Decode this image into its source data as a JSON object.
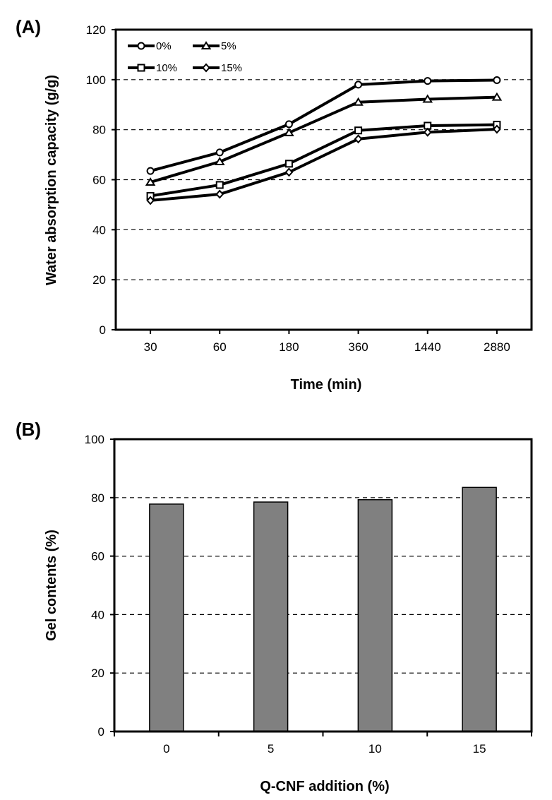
{
  "chart_data": [
    {
      "panel_label": "(A)",
      "type": "line",
      "title": "",
      "xlabel": "Time (min)",
      "ylabel": "Water absorption capacity (g/g)",
      "categories": [
        "30",
        "60",
        "180",
        "360",
        "1440",
        "2880"
      ],
      "ylim": [
        0,
        120
      ],
      "yticks": [
        0,
        20,
        40,
        60,
        80,
        100,
        120
      ],
      "grid": "horizontal-dashed",
      "legend": "top-left",
      "series": [
        {
          "name": "0%",
          "marker": "circle",
          "values": [
            63.5,
            70.9,
            82.2,
            98.0,
            99.5,
            99.8
          ]
        },
        {
          "name": "5%",
          "marker": "triangle",
          "values": [
            59.0,
            67.2,
            78.8,
            91.0,
            92.2,
            93.0
          ]
        },
        {
          "name": "10%",
          "marker": "square",
          "values": [
            53.5,
            57.9,
            66.4,
            79.7,
            81.6,
            82.0
          ]
        },
        {
          "name": "15%",
          "marker": "diamond",
          "values": [
            51.7,
            54.2,
            63.0,
            76.3,
            79.0,
            80.2
          ]
        }
      ]
    },
    {
      "panel_label": "(B)",
      "type": "bar",
      "title": "",
      "xlabel": "Q-CNF addition (%)",
      "ylabel": "Gel contents (%)",
      "categories": [
        "0",
        "5",
        "10",
        "15"
      ],
      "values": [
        77.8,
        78.5,
        79.3,
        83.5
      ],
      "ylim": [
        0,
        100
      ],
      "yticks": [
        0,
        20,
        40,
        60,
        80,
        100
      ],
      "grid": "horizontal-dashed",
      "bar_color": "#808080"
    }
  ]
}
